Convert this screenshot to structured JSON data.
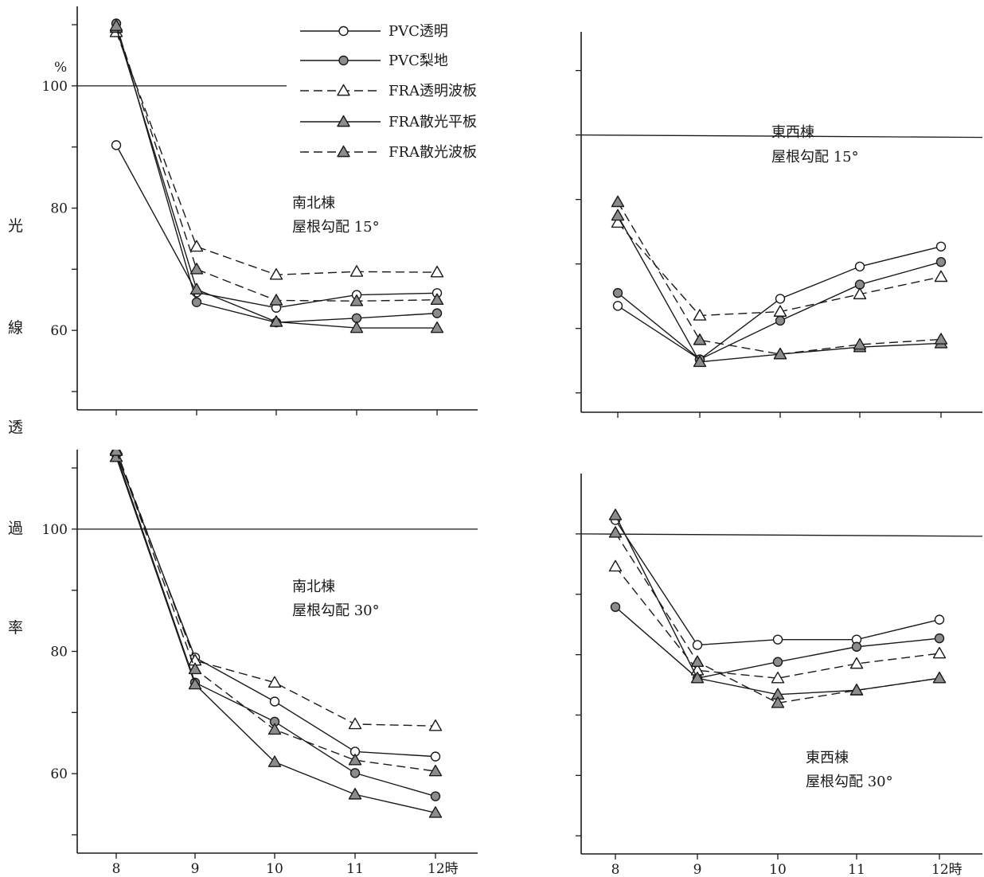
{
  "figure": {
    "y_axis_label_chars": [
      "光",
      "線",
      "透",
      "過",
      "率"
    ],
    "y_unit": "%",
    "hour_unit": "時"
  },
  "legend": [
    {
      "key": "pvc_clear",
      "label": "PVC透明"
    },
    {
      "key": "pvc_pear",
      "label": "PVC梨地"
    },
    {
      "key": "fra_clear_wave",
      "label": "FRA透明波板"
    },
    {
      "key": "fra_diffuse_flat",
      "label": "FRA散光平板"
    },
    {
      "key": "fra_diffuse_wave",
      "label": "FRA散光波板"
    }
  ],
  "styles": {
    "pvc_clear": {
      "marker": "circle-open",
      "dash": "solid",
      "color": "#1a1a1a"
    },
    "pvc_pear": {
      "marker": "circle-filled",
      "dash": "solid",
      "color": "#1a1a1a"
    },
    "fra_clear_wave": {
      "marker": "triangle-open",
      "dash": "dashed",
      "color": "#1a1a1a"
    },
    "fra_diffuse_flat": {
      "marker": "triangle-filled",
      "dash": "solid",
      "color": "#1a1a1a"
    },
    "fra_diffuse_wave": {
      "marker": "triangle-filled",
      "dash": "dashed",
      "color": "#1a1a1a"
    }
  },
  "chart_data": [
    {
      "type": "line",
      "panel": "top-left",
      "annotation": [
        "南北棟",
        "屋根勾配 15°"
      ],
      "x": [
        8,
        9,
        10,
        11,
        12
      ],
      "x_tick_labels": [],
      "ylim": [
        47,
        113
      ],
      "y_tick_values": [
        50,
        60,
        70,
        80,
        90,
        100,
        110
      ],
      "y_tick_labels": {
        "60": "60",
        "80": "80",
        "100": "100"
      },
      "reference_line_y": 100,
      "grid": false,
      "series": [
        {
          "key": "pvc_clear",
          "name": "PVC透明",
          "values": [
            90.3,
            66.2,
            63.7,
            65.8,
            66.1
          ]
        },
        {
          "key": "pvc_pear",
          "name": "PVC梨地",
          "values": [
            110.2,
            64.6,
            61.3,
            62.0,
            62.8
          ]
        },
        {
          "key": "fra_clear_wave",
          "name": "FRA透明波板",
          "values": [
            108.8,
            73.7,
            69.1,
            69.6,
            69.5
          ]
        },
        {
          "key": "fra_diffuse_flat",
          "name": "FRA散光平板",
          "values": [
            109.5,
            66.7,
            61.4,
            60.4,
            60.4
          ]
        },
        {
          "key": "fra_diffuse_wave",
          "name": "FRA散光波板",
          "values": [
            109.8,
            70.0,
            64.9,
            64.8,
            65.0
          ]
        }
      ]
    },
    {
      "type": "line",
      "panel": "top-right",
      "annotation": [
        "東西棟",
        "屋根勾配 15°"
      ],
      "x": [
        8,
        9,
        10,
        11,
        12
      ],
      "x_tick_labels": [],
      "ylim": [
        57,
        116
      ],
      "y_tick_values": [
        60,
        70,
        80,
        90,
        100,
        110
      ],
      "y_tick_labels": {},
      "reference_line_y": 100,
      "grid": false,
      "series": [
        {
          "key": "pvc_clear",
          "name": "PVC透明",
          "values": [
            73.5,
            65.2,
            74.6,
            79.6,
            82.7
          ]
        },
        {
          "key": "pvc_pear",
          "name": "PVC梨地",
          "values": [
            75.5,
            65.2,
            71.2,
            76.8,
            80.3
          ]
        },
        {
          "key": "fra_clear_wave",
          "name": "FRA透明波板",
          "values": [
            86.4,
            72.0,
            72.6,
            75.3,
            78.0
          ]
        },
        {
          "key": "fra_diffuse_flat",
          "name": "FRA散光平板",
          "values": [
            87.5,
            64.8,
            66.0,
            67.1,
            67.7
          ]
        },
        {
          "key": "fra_diffuse_wave",
          "name": "FRA散光波板",
          "values": [
            89.6,
            68.2,
            66.0,
            67.5,
            68.3
          ]
        }
      ]
    },
    {
      "type": "line",
      "panel": "bottom-left",
      "annotation": [
        "南北棟",
        "屋根勾配 30°"
      ],
      "x": [
        8,
        9,
        10,
        11,
        12
      ],
      "x_tick_labels": [
        "8",
        "9",
        "10",
        "11",
        "12"
      ],
      "ylim": [
        47,
        113
      ],
      "y_tick_values": [
        50,
        60,
        70,
        80,
        90,
        100,
        110
      ],
      "y_tick_labels": {
        "60": "60",
        "80": "80",
        "100": "100"
      },
      "reference_line_y": 100,
      "grid": false,
      "series": [
        {
          "key": "pvc_clear",
          "name": "PVC透明",
          "values": [
            112.5,
            79.0,
            71.8,
            63.6,
            62.8
          ]
        },
        {
          "key": "pvc_pear",
          "name": "PVC梨地",
          "values": [
            112.2,
            74.9,
            68.5,
            60.1,
            56.3
          ]
        },
        {
          "key": "fra_clear_wave",
          "name": "FRA透明波板",
          "values": [
            113.0,
            78.5,
            74.9,
            68.1,
            67.8
          ]
        },
        {
          "key": "fra_diffuse_flat",
          "name": "FRA散光平板",
          "values": [
            111.8,
            74.6,
            61.9,
            56.6,
            53.6
          ]
        },
        {
          "key": "fra_diffuse_wave",
          "name": "FRA散光波板",
          "values": [
            112.8,
            77.1,
            67.2,
            62.2,
            60.4
          ]
        }
      ]
    },
    {
      "type": "line",
      "panel": "bottom-right",
      "annotation": [
        "東西棟",
        "屋根勾配 30°"
      ],
      "x": [
        8,
        9,
        10,
        11,
        12
      ],
      "x_tick_labels": [
        "8",
        "9",
        "10",
        "11",
        "12"
      ],
      "ylim": [
        47,
        110
      ],
      "y_tick_values": [
        50,
        60,
        70,
        80,
        90,
        100
      ],
      "y_tick_labels": {},
      "reference_line_y": 100,
      "grid": false,
      "series": [
        {
          "key": "pvc_clear",
          "name": "PVC透明",
          "values": [
            102.3,
            81.6,
            82.5,
            82.5,
            85.8
          ]
        },
        {
          "key": "pvc_pear",
          "name": "PVC梨地",
          "values": [
            87.9,
            76.1,
            78.8,
            81.3,
            82.7
          ]
        },
        {
          "key": "fra_clear_wave",
          "name": "FRA透明波板",
          "values": [
            94.6,
            77.4,
            76.1,
            78.5,
            80.2
          ]
        },
        {
          "key": "fra_diffuse_flat",
          "name": "FRA散光平板",
          "values": [
            103.1,
            76.1,
            73.4,
            74.1,
            76.1
          ]
        },
        {
          "key": "fra_diffuse_wave",
          "name": "FRA散光波板",
          "values": [
            100.2,
            78.8,
            72.0,
            74.1,
            76.1
          ]
        }
      ]
    }
  ]
}
